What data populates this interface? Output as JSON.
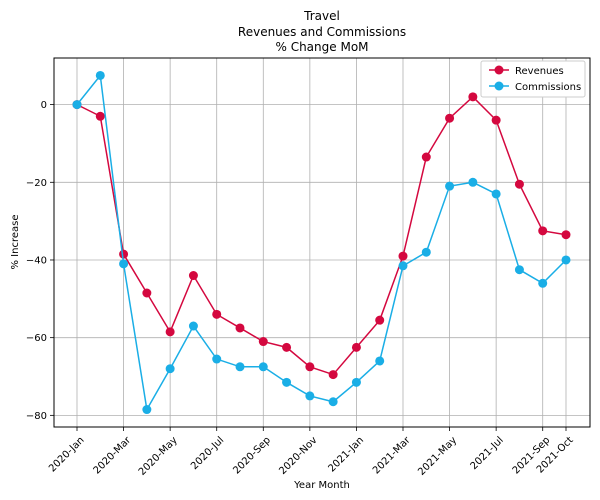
{
  "chart_data": {
    "type": "line",
    "title": [
      "Travel",
      "Revenues and Commissions",
      "% Change MoM"
    ],
    "xlabel": "Year Month",
    "ylabel": "% Increase",
    "x": [
      "2020-Jan",
      "2020-Feb",
      "2020-Mar",
      "2020-Apr",
      "2020-May",
      "2020-Jun",
      "2020-Jul",
      "2020-Aug",
      "2020-Sep",
      "2020-Oct",
      "2020-Nov",
      "2020-Dec",
      "2021-Jan",
      "2021-Feb",
      "2021-Mar",
      "2021-Apr",
      "2021-May",
      "2021-Jun",
      "2021-Jul",
      "2021-Aug",
      "2021-Sep",
      "2021-Oct"
    ],
    "x_tick_labels": [
      "2020-Jan",
      "2020-Mar",
      "2020-May",
      "2020-Jul",
      "2020-Sep",
      "2020-Nov",
      "2021-Jan",
      "2021-Mar",
      "2021-May",
      "2021-Jul",
      "2021-Sep",
      "2021-Oct"
    ],
    "x_tick_indices": [
      0,
      2,
      4,
      6,
      8,
      10,
      12,
      14,
      16,
      18,
      20,
      21
    ],
    "ylim": [
      -83,
      12
    ],
    "y_ticks": [
      0,
      -20,
      -40,
      -60,
      -80
    ],
    "grid": true,
    "legend_position": "top-right",
    "series": [
      {
        "name": "Revenues",
        "color": "#d4083f",
        "values": [
          0,
          -3,
          -38.5,
          -48.5,
          -58.5,
          -44,
          -54,
          -57.5,
          -61,
          -62.5,
          -67.5,
          -69.5,
          -62.5,
          -55.5,
          -39,
          -13.5,
          -3.5,
          2,
          -4,
          -20.5,
          -32.5,
          -33.5
        ]
      },
      {
        "name": "Commissions",
        "color": "#1aaee6",
        "values": [
          0,
          7.5,
          -41,
          -78.5,
          -68,
          -57,
          -65.5,
          -67.5,
          -67.5,
          -71.5,
          -75,
          -76.5,
          -71.5,
          -66,
          -41.5,
          -38,
          -21,
          -20,
          -23,
          -42.5,
          -46,
          -40
        ]
      }
    ]
  }
}
